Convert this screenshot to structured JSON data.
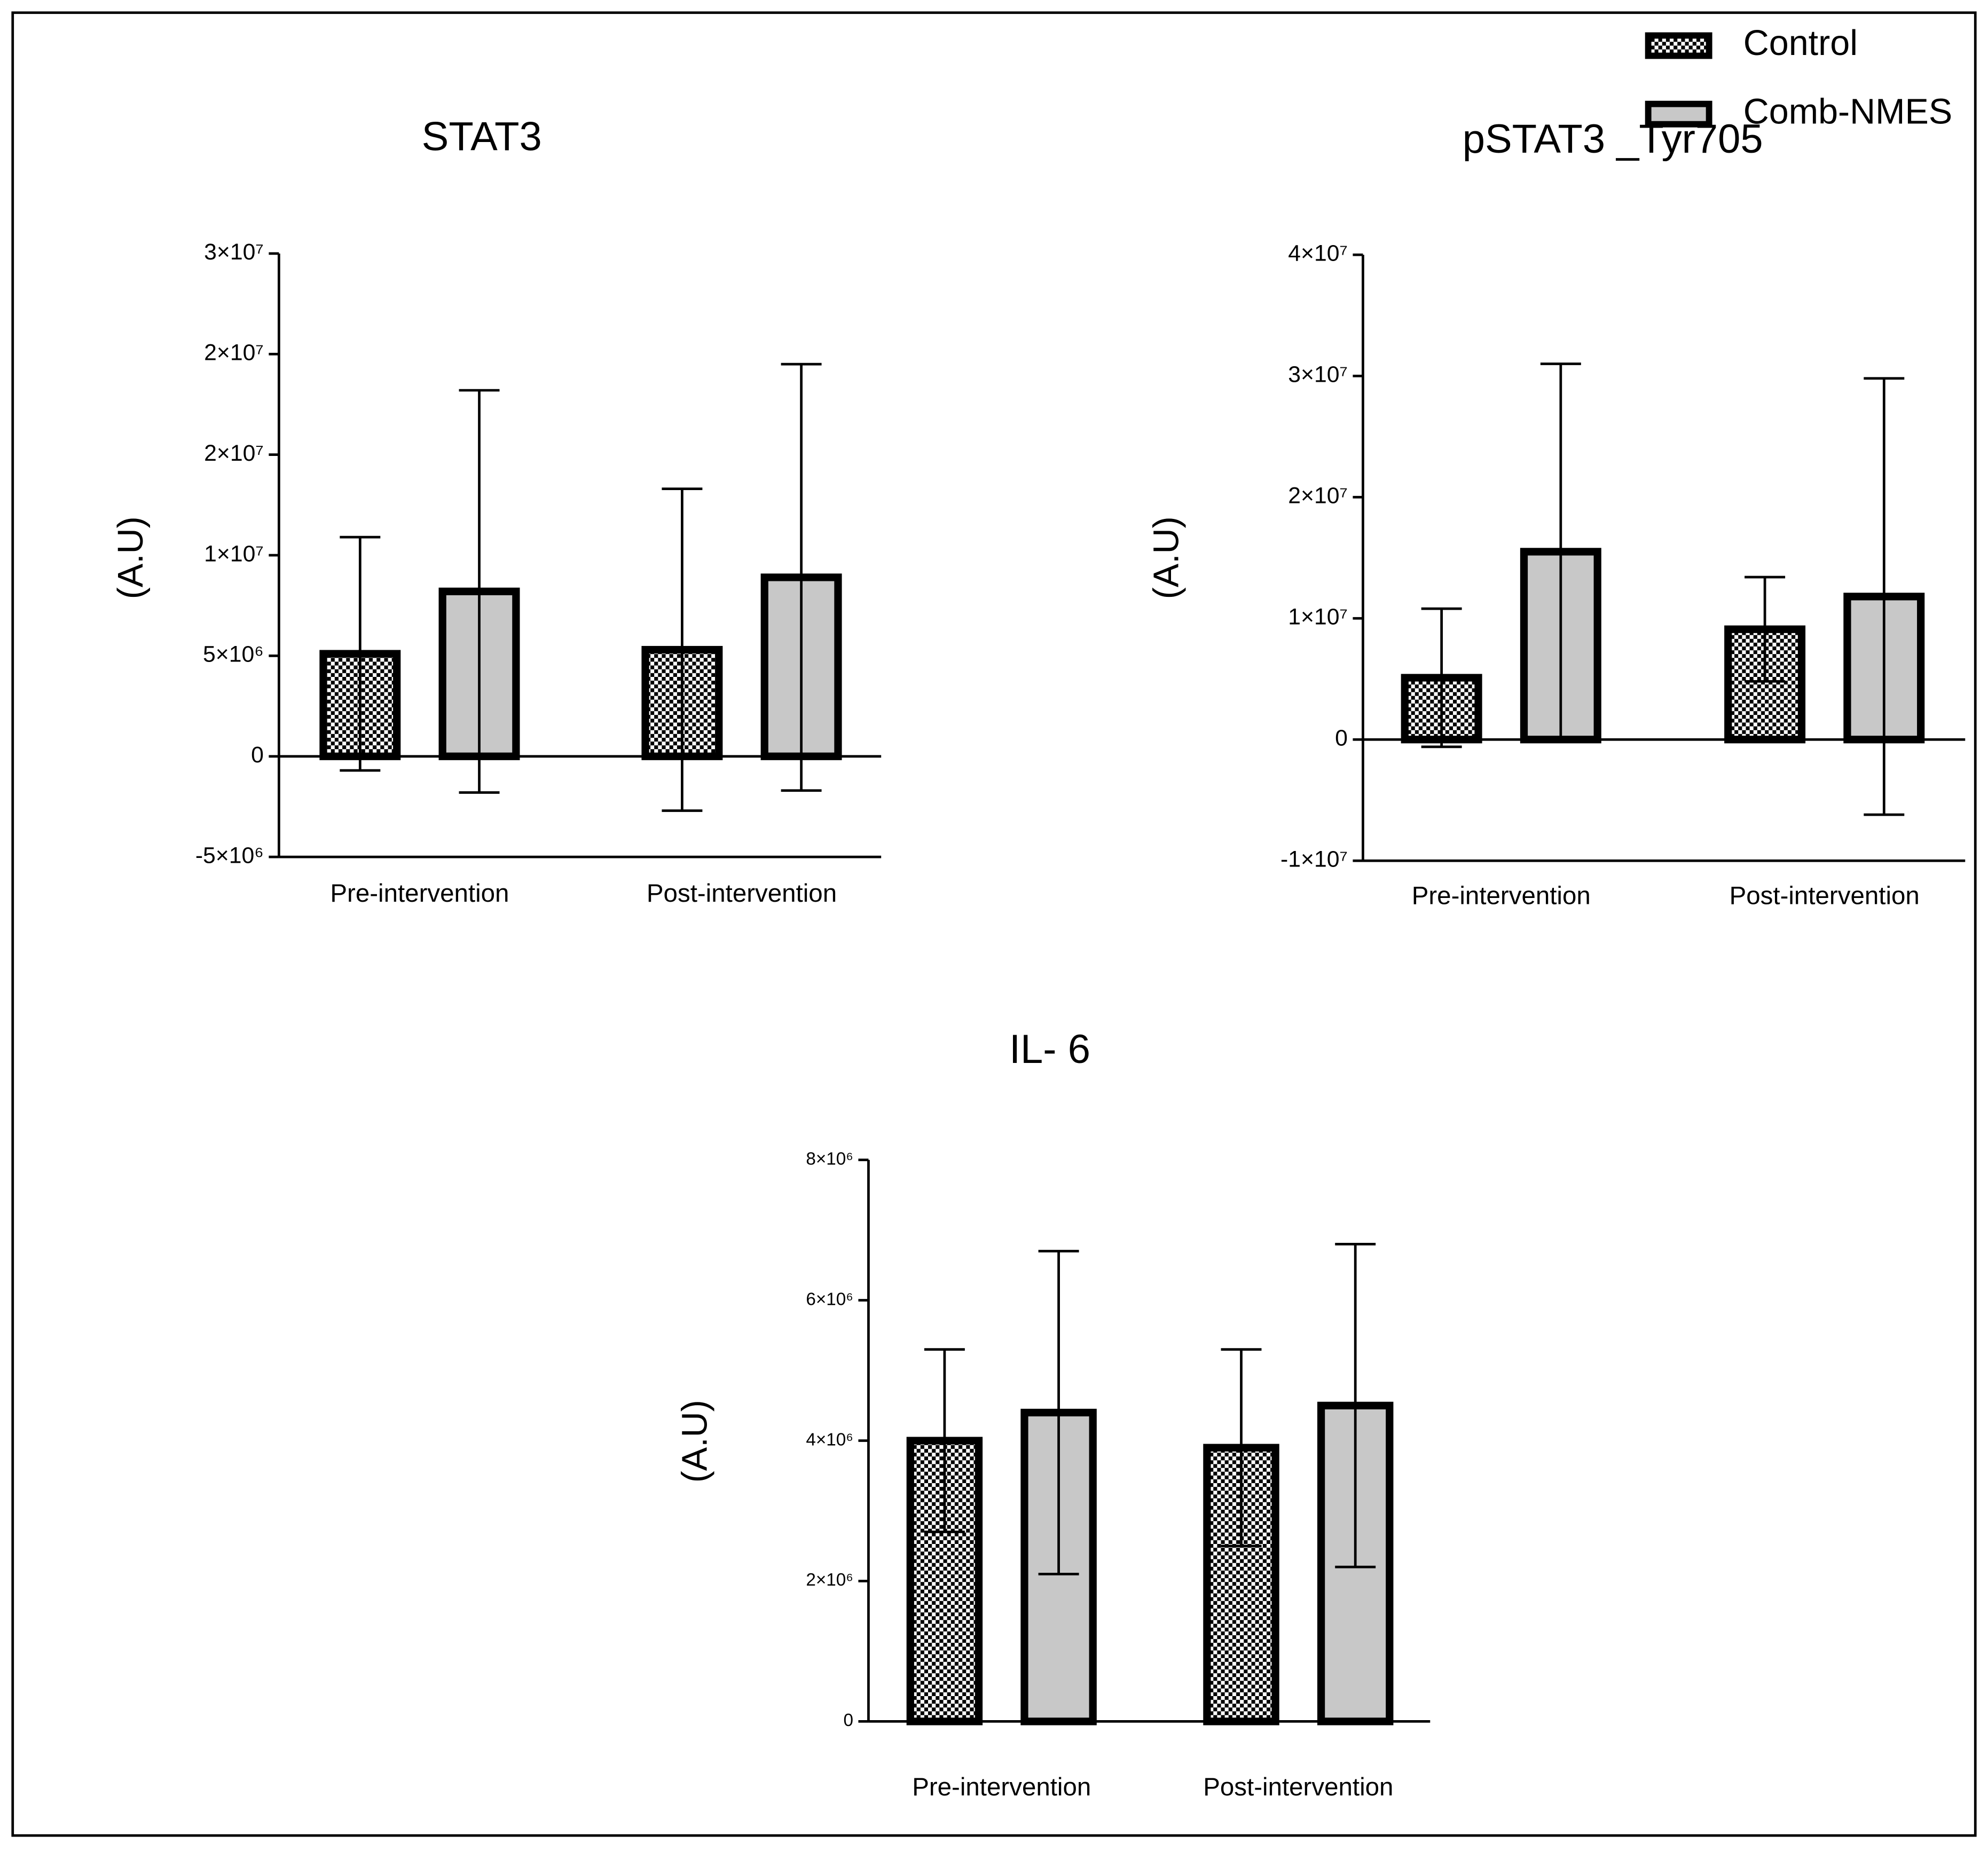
{
  "legend": [
    {
      "name": "Control",
      "pattern": "checkered",
      "color": "#ffffff"
    },
    {
      "name": "Comb-NMES",
      "color": "#c8c8c8"
    }
  ],
  "chart_data": [
    {
      "type": "bar",
      "title": "STAT3",
      "y_label": "(A.U)",
      "categories": [
        "Pre-intervention",
        "Post-intervention"
      ],
      "series": [
        {
          "values": [
            5100000,
            5300000
          ],
          "errors": [
            5800000,
            8000000
          ]
        },
        {
          "values": [
            8200000,
            8900000
          ],
          "errors": [
            10000000,
            10600000
          ]
        }
      ],
      "ylim": [
        -5000000,
        25000000
      ],
      "yticks": [
        {
          "value": -5000000,
          "label": "-5×10⁶"
        },
        0,
        {
          "value": 5000000,
          "label": "5×10⁶"
        },
        {
          "value": 10000000,
          "label": "1×10⁷"
        },
        {
          "value": 15000000,
          "label": "2×10⁷"
        },
        {
          "value": 20000000,
          "label": "2×10⁷"
        },
        {
          "value": 25000000,
          "label": "3×10⁷"
        }
      ]
    },
    {
      "type": "bar",
      "title": "pSTAT3 _Tyr705",
      "y_label": "(A.U)",
      "categories": [
        "Pre-intervention",
        "Post-intervention"
      ],
      "series": [
        {
          "values": [
            5100000,
            9100000
          ],
          "errors": [
            5700000,
            4300000
          ]
        },
        {
          "values": [
            15500000,
            11800000
          ],
          "errors": [
            15500000,
            18000000
          ]
        }
      ],
      "ylim": [
        -10000000,
        40000000
      ],
      "yticks": [
        {
          "value": -10000000,
          "label": "-1×10⁷"
        },
        0,
        {
          "value": 10000000,
          "label": "1×10⁷"
        },
        {
          "value": 20000000,
          "label": "2×10⁷"
        },
        {
          "value": 30000000,
          "label": "3×10⁷"
        },
        {
          "value": 40000000,
          "label": "4×10⁷"
        }
      ]
    },
    {
      "type": "bar",
      "title": "IL- 6",
      "y_label": "(A.U)",
      "categories": [
        "Pre-intervention",
        "Post-intervention"
      ],
      "series": [
        {
          "values": [
            4000000,
            3900000
          ],
          "errors": [
            1300000,
            1400000
          ]
        },
        {
          "values": [
            4400000,
            4500000
          ],
          "errors": [
            2300000,
            2300000
          ]
        }
      ],
      "ylim": [
        0,
        8000000
      ],
      "yticks": [
        0,
        {
          "value": 2000000,
          "label": "2×10⁶"
        },
        {
          "value": 4000000,
          "label": "4×10⁶"
        },
        {
          "value": 6000000,
          "label": "6×10⁶"
        },
        {
          "value": 8000000,
          "label": "8×10⁶"
        }
      ]
    }
  ]
}
